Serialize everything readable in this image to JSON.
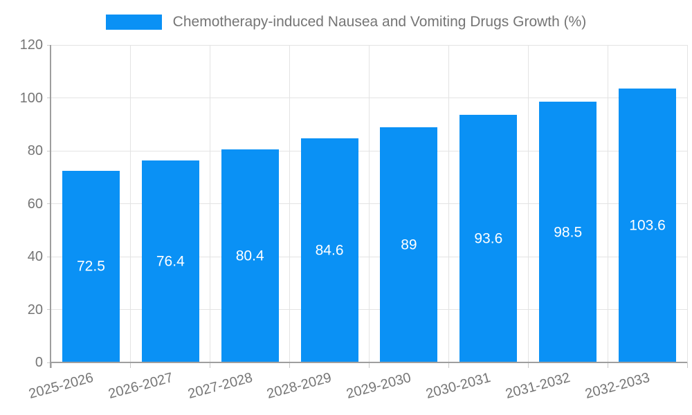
{
  "chart_data": {
    "type": "bar",
    "title": "Chemotherapy-induced Nausea and Vomiting Drugs Growth (%)",
    "categories": [
      "2025-2026",
      "2026-2027",
      "2027-2028",
      "2028-2029",
      "2029-2030",
      "2030-2031",
      "2031-2032",
      "2032-2033"
    ],
    "values": [
      72.5,
      76.4,
      80.4,
      84.6,
      89,
      93.6,
      98.5,
      103.6
    ],
    "value_labels": [
      "72.5",
      "76.4",
      "80.4",
      "84.6",
      "89",
      "93.6",
      "98.5",
      "103.6"
    ],
    "xlabel": "",
    "ylabel": "",
    "ylim": [
      0,
      120
    ],
    "yticks": [
      0,
      20,
      40,
      60,
      80,
      100,
      120
    ],
    "grid": true,
    "legend_position": "top-center",
    "x_tick_rotation_deg": -15,
    "colors": {
      "bar": "#0a91f5",
      "bar_value_text": "#ffffff",
      "axis_text": "#757575",
      "title_text": "#757575",
      "gridline": "#e3e3e3",
      "axis_line": "#9e9e9e",
      "tick_mark": "#c9c9c9",
      "background": "#ffffff"
    }
  }
}
